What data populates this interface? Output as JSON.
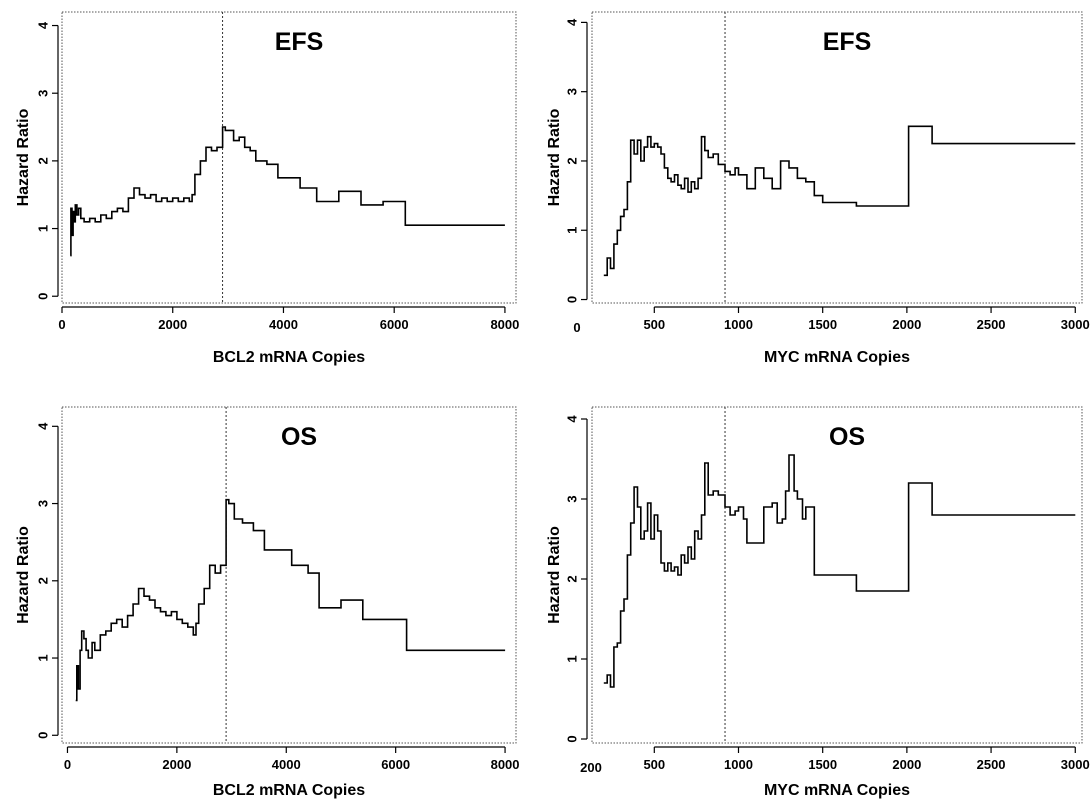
{
  "chart_data": [
    {
      "type": "line",
      "title": "EFS",
      "xlabel": "BCL2 mRNA Copies",
      "ylabel": "Hazard Ratio",
      "xlim": [
        0,
        8200
      ],
      "ylim": [
        -0.1,
        4.2
      ],
      "xticks": [
        0,
        2000,
        4000,
        6000,
        8000
      ],
      "xtick_labels": [
        "0",
        "2000",
        "4000",
        "6000",
        "8000"
      ],
      "yticks": [
        0,
        1,
        2,
        3,
        4
      ],
      "ytick_labels": [
        "0",
        "1",
        "2",
        "3",
        "4"
      ],
      "cutoff": 2900,
      "grid": false,
      "x": [
        150,
        160,
        180,
        200,
        220,
        240,
        270,
        300,
        340,
        400,
        500,
        600,
        700,
        800,
        900,
        1000,
        1100,
        1200,
        1300,
        1400,
        1500,
        1600,
        1700,
        1800,
        1900,
        2000,
        2100,
        2200,
        2300,
        2350,
        2400,
        2500,
        2600,
        2700,
        2800,
        2900,
        2950,
        3100,
        3200,
        3300,
        3400,
        3500,
        3700,
        3900,
        4300,
        4600,
        5000,
        5400,
        5800,
        6200,
        8000
      ],
      "y": [
        0.6,
        1.3,
        0.9,
        1.25,
        1.1,
        1.35,
        1.2,
        1.3,
        1.15,
        1.1,
        1.15,
        1.1,
        1.2,
        1.15,
        1.25,
        1.3,
        1.25,
        1.45,
        1.6,
        1.5,
        1.45,
        1.5,
        1.4,
        1.45,
        1.4,
        1.45,
        1.4,
        1.45,
        1.4,
        1.5,
        1.8,
        2.0,
        2.2,
        2.15,
        2.2,
        2.5,
        2.45,
        2.3,
        2.35,
        2.2,
        2.15,
        2.0,
        1.95,
        1.75,
        1.6,
        1.4,
        1.55,
        1.35,
        1.4,
        1.05,
        1.05
      ]
    },
    {
      "type": "line",
      "title": "EFS",
      "xlabel": "MYC mRNA Copies",
      "ylabel": "Hazard Ratio",
      "xlim": [
        130,
        3040
      ],
      "ylim": [
        -0.05,
        4.15
      ],
      "xticks": [
        500,
        1000,
        1500,
        2000,
        2500,
        3000
      ],
      "xtick_labels": [
        "500",
        "1000",
        "1500",
        "2000",
        "2500",
        "3000"
      ],
      "extra_xtick_label": "0",
      "yticks": [
        0,
        1,
        2,
        3,
        4
      ],
      "ytick_labels": [
        "0",
        "1",
        "2",
        "3",
        "4"
      ],
      "cutoff": 920,
      "grid": false,
      "x": [
        200,
        220,
        240,
        260,
        280,
        300,
        320,
        340,
        360,
        380,
        400,
        420,
        440,
        460,
        480,
        500,
        520,
        540,
        560,
        580,
        600,
        620,
        640,
        660,
        680,
        700,
        720,
        740,
        760,
        780,
        800,
        820,
        850,
        880,
        920,
        950,
        980,
        1000,
        1050,
        1100,
        1150,
        1200,
        1250,
        1300,
        1350,
        1400,
        1450,
        1500,
        1700,
        2000,
        2010,
        2050,
        2150,
        3000
      ],
      "y": [
        0.35,
        0.6,
        0.45,
        0.8,
        1.0,
        1.2,
        1.3,
        1.7,
        2.3,
        2.1,
        2.3,
        2.0,
        2.2,
        2.35,
        2.2,
        2.25,
        2.2,
        2.1,
        1.9,
        1.75,
        1.7,
        1.8,
        1.65,
        1.6,
        1.75,
        1.55,
        1.7,
        1.6,
        1.75,
        2.35,
        2.15,
        2.05,
        2.1,
        1.95,
        1.85,
        1.8,
        1.9,
        1.8,
        1.6,
        1.9,
        1.75,
        1.6,
        2.0,
        1.9,
        1.75,
        1.7,
        1.5,
        1.4,
        1.35,
        1.35,
        2.5,
        2.5,
        2.25,
        2.25
      ]
    },
    {
      "type": "line",
      "title": "OS",
      "xlabel": "BCL2 mRNA Copies",
      "ylabel": "Hazard Ratio",
      "xlim": [
        -100,
        8200
      ],
      "ylim": [
        -0.1,
        4.25
      ],
      "xticks": [
        0,
        2000,
        4000,
        6000,
        8000
      ],
      "xtick_labels": [
        "0",
        "2000",
        "4000",
        "6000",
        "8000"
      ],
      "yticks": [
        0,
        1,
        2,
        3,
        4
      ],
      "ytick_labels": [
        "0",
        "1",
        "2",
        "3",
        "4"
      ],
      "cutoff": 2900,
      "grid": false,
      "x": [
        150,
        170,
        200,
        230,
        260,
        300,
        340,
        380,
        450,
        500,
        600,
        700,
        800,
        900,
        1000,
        1100,
        1200,
        1300,
        1400,
        1500,
        1600,
        1700,
        1800,
        1900,
        2000,
        2100,
        2200,
        2300,
        2350,
        2400,
        2500,
        2600,
        2700,
        2800,
        2900,
        2950,
        3050,
        3200,
        3400,
        3600,
        3800,
        4100,
        4400,
        4600,
        5000,
        5400,
        5800,
        6200,
        8000
      ],
      "y": [
        0.45,
        0.9,
        0.6,
        1.1,
        1.35,
        1.25,
        1.1,
        1.0,
        1.2,
        1.1,
        1.3,
        1.35,
        1.45,
        1.5,
        1.4,
        1.55,
        1.7,
        1.9,
        1.8,
        1.75,
        1.65,
        1.6,
        1.55,
        1.6,
        1.5,
        1.45,
        1.4,
        1.3,
        1.45,
        1.7,
        1.9,
        2.2,
        2.1,
        2.2,
        3.05,
        3.0,
        2.8,
        2.75,
        2.65,
        2.4,
        2.4,
        2.2,
        2.1,
        1.65,
        1.75,
        1.5,
        1.5,
        1.1,
        1.1
      ]
    },
    {
      "type": "line",
      "title": "OS",
      "xlabel": "MYC mRNA Copies",
      "ylabel": "Hazard Ratio",
      "xlim": [
        130,
        3040
      ],
      "ylim": [
        -0.05,
        4.15
      ],
      "xticks": [
        500,
        1000,
        1500,
        2000,
        2500,
        3000
      ],
      "xtick_labels": [
        "500",
        "1000",
        "1500",
        "2000",
        "2500",
        "3000"
      ],
      "extra_xtick_label": "200",
      "yticks": [
        0,
        1,
        2,
        3,
        4
      ],
      "ytick_labels": [
        "0",
        "1",
        "2",
        "3",
        "4"
      ],
      "cutoff": 920,
      "grid": false,
      "x": [
        200,
        220,
        240,
        260,
        280,
        300,
        320,
        340,
        360,
        380,
        400,
        420,
        440,
        460,
        480,
        500,
        520,
        540,
        560,
        580,
        600,
        620,
        640,
        660,
        680,
        700,
        720,
        740,
        760,
        780,
        800,
        820,
        850,
        880,
        920,
        950,
        980,
        1000,
        1030,
        1050,
        1100,
        1150,
        1200,
        1230,
        1260,
        1280,
        1300,
        1330,
        1350,
        1380,
        1400,
        1450,
        1500,
        1700,
        2000,
        2010,
        2050,
        2150,
        3000
      ],
      "y": [
        0.7,
        0.8,
        0.65,
        1.15,
        1.2,
        1.6,
        1.75,
        2.3,
        2.7,
        3.15,
        2.9,
        2.5,
        2.6,
        2.95,
        2.5,
        2.8,
        2.6,
        2.2,
        2.1,
        2.2,
        2.1,
        2.15,
        2.05,
        2.3,
        2.2,
        2.4,
        2.25,
        2.6,
        2.5,
        2.8,
        3.45,
        3.05,
        3.1,
        3.05,
        2.9,
        2.8,
        2.85,
        2.9,
        2.75,
        2.45,
        2.45,
        2.9,
        2.95,
        2.7,
        2.75,
        3.1,
        3.55,
        3.1,
        3.0,
        2.75,
        2.9,
        2.05,
        2.05,
        1.85,
        1.85,
        3.2,
        3.2,
        2.8,
        2.8
      ]
    }
  ]
}
